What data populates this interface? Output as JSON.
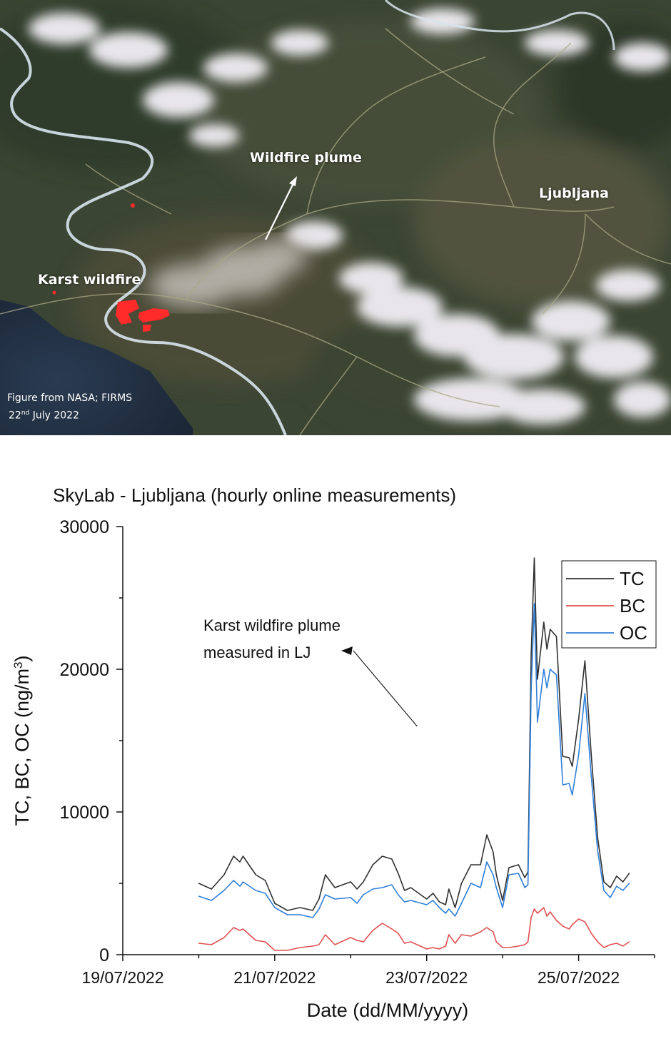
{
  "map": {
    "labels": {
      "plume": "Wildfire plume",
      "city": "Ljubljana",
      "fire": "Karst wildfire"
    },
    "credit": {
      "line1": "Figure from NASA; FIRMS",
      "day": "22",
      "day_suffix": "nd",
      "month_year": " July 2022"
    },
    "colors": {
      "fire": "#ff2a2a",
      "border": "#d8e4ee",
      "plume": "#b8b3ac"
    }
  },
  "chart_data": {
    "type": "line",
    "title": "SkyLab - Ljubljana (hourly online measurements)",
    "xlabel": "Date (dd/MM/yyyy)",
    "ylabel": "TC, BC, OC (ng/m",
    "ylabel_sup": "3",
    "ylabel_end": ")",
    "ylim": [
      0,
      30000
    ],
    "yticks": [
      0,
      10000,
      20000,
      30000
    ],
    "xlim": [
      "2022-07-19",
      "2022-07-26"
    ],
    "xticks": [
      {
        "date": "2022-07-19",
        "label": "19/07/2022"
      },
      {
        "date": "2022-07-21",
        "label": "21/07/2022"
      },
      {
        "date": "2022-07-23",
        "label": "23/07/2022"
      },
      {
        "date": "2022-07-25",
        "label": "25/07/2022"
      }
    ],
    "legend_position": "top-right",
    "annotation": {
      "lines": [
        "Karst wildfire plume",
        "measured in LJ"
      ],
      "points_to": {
        "x": "2022-07-22 21:00",
        "y": 21500
      }
    },
    "series": [
      {
        "name": "TC",
        "color": "#303030",
        "points": [
          [
            "2022-07-20 00:00",
            5000
          ],
          [
            "2022-07-20 04:00",
            4600
          ],
          [
            "2022-07-20 08:00",
            5600
          ],
          [
            "2022-07-20 11:00",
            6900
          ],
          [
            "2022-07-20 13:00",
            6500
          ],
          [
            "2022-07-20 14:00",
            6900
          ],
          [
            "2022-07-20 18:00",
            5600
          ],
          [
            "2022-07-20 21:00",
            5200
          ],
          [
            "2022-07-21 00:00",
            3600
          ],
          [
            "2022-07-21 04:00",
            3100
          ],
          [
            "2022-07-21 08:00",
            3300
          ],
          [
            "2022-07-21 12:00",
            3100
          ],
          [
            "2022-07-21 14:00",
            3900
          ],
          [
            "2022-07-21 16:00",
            5600
          ],
          [
            "2022-07-21 19:00",
            4700
          ],
          [
            "2022-07-22 00:00",
            5100
          ],
          [
            "2022-07-22 02:00",
            4600
          ],
          [
            "2022-07-22 04:00",
            5100
          ],
          [
            "2022-07-22 07:00",
            6300
          ],
          [
            "2022-07-22 10:00",
            6900
          ],
          [
            "2022-07-22 13:00",
            6700
          ],
          [
            "2022-07-22 15:00",
            5700
          ],
          [
            "2022-07-22 17:00",
            4500
          ],
          [
            "2022-07-22 19:00",
            4700
          ],
          [
            "2022-07-23 00:00",
            3900
          ],
          [
            "2022-07-23 02:00",
            4300
          ],
          [
            "2022-07-23 04:00",
            3700
          ],
          [
            "2022-07-23 06:00",
            3500
          ],
          [
            "2022-07-23 07:00",
            4600
          ],
          [
            "2022-07-23 09:00",
            3300
          ],
          [
            "2022-07-23 11:00",
            5000
          ],
          [
            "2022-07-23 14:00",
            6300
          ],
          [
            "2022-07-23 17:00",
            6300
          ],
          [
            "2022-07-23 19:00",
            8400
          ],
          [
            "2022-07-23 21:00",
            7200
          ],
          [
            "2022-07-23 22:00",
            5600
          ],
          [
            "2022-07-24 00:00",
            3800
          ],
          [
            "2022-07-24 02:00",
            6100
          ],
          [
            "2022-07-24 05:00",
            6300
          ],
          [
            "2022-07-24 07:00",
            5400
          ],
          [
            "2022-07-24 08:00",
            5800
          ],
          [
            "2022-07-24 09:00",
            21000
          ],
          [
            "2022-07-24 10:00",
            27800
          ],
          [
            "2022-07-24 11:00",
            19300
          ],
          [
            "2022-07-24 13:00",
            23300
          ],
          [
            "2022-07-24 14:00",
            21400
          ],
          [
            "2022-07-24 15:00",
            22800
          ],
          [
            "2022-07-24 17:00",
            22300
          ],
          [
            "2022-07-24 19:00",
            13900
          ],
          [
            "2022-07-24 21:00",
            13800
          ],
          [
            "2022-07-24 22:00",
            13200
          ],
          [
            "2022-07-25 00:00",
            16500
          ],
          [
            "2022-07-25 02:00",
            20600
          ],
          [
            "2022-07-25 04:00",
            14000
          ],
          [
            "2022-07-25 06:00",
            8200
          ],
          [
            "2022-07-25 08:00",
            5100
          ],
          [
            "2022-07-25 10:00",
            4700
          ],
          [
            "2022-07-25 12:00",
            5500
          ],
          [
            "2022-07-25 14:00",
            5100
          ],
          [
            "2022-07-25 16:00",
            5700
          ]
        ]
      },
      {
        "name": "BC",
        "color": "#e05050",
        "points": [
          [
            "2022-07-20 00:00",
            800
          ],
          [
            "2022-07-20 04:00",
            700
          ],
          [
            "2022-07-20 08:00",
            1200
          ],
          [
            "2022-07-20 11:00",
            1900
          ],
          [
            "2022-07-20 13:00",
            1700
          ],
          [
            "2022-07-20 14:00",
            1800
          ],
          [
            "2022-07-20 18:00",
            1000
          ],
          [
            "2022-07-20 21:00",
            900
          ],
          [
            "2022-07-21 00:00",
            300
          ],
          [
            "2022-07-21 04:00",
            300
          ],
          [
            "2022-07-21 08:00",
            500
          ],
          [
            "2022-07-21 12:00",
            600
          ],
          [
            "2022-07-21 14:00",
            700
          ],
          [
            "2022-07-21 16:00",
            1400
          ],
          [
            "2022-07-21 19:00",
            700
          ],
          [
            "2022-07-22 00:00",
            1200
          ],
          [
            "2022-07-22 02:00",
            1000
          ],
          [
            "2022-07-22 04:00",
            900
          ],
          [
            "2022-07-22 07:00",
            1700
          ],
          [
            "2022-07-22 10:00",
            2200
          ],
          [
            "2022-07-22 13:00",
            1800
          ],
          [
            "2022-07-22 15:00",
            1500
          ],
          [
            "2022-07-22 17:00",
            800
          ],
          [
            "2022-07-22 19:00",
            900
          ],
          [
            "2022-07-23 00:00",
            400
          ],
          [
            "2022-07-23 02:00",
            500
          ],
          [
            "2022-07-23 04:00",
            400
          ],
          [
            "2022-07-23 06:00",
            600
          ],
          [
            "2022-07-23 07:00",
            1400
          ],
          [
            "2022-07-23 09:00",
            800
          ],
          [
            "2022-07-23 11:00",
            1400
          ],
          [
            "2022-07-23 14:00",
            1300
          ],
          [
            "2022-07-23 17:00",
            1600
          ],
          [
            "2022-07-23 19:00",
            1900
          ],
          [
            "2022-07-23 21:00",
            1600
          ],
          [
            "2022-07-23 22:00",
            900
          ],
          [
            "2022-07-24 00:00",
            500
          ],
          [
            "2022-07-24 02:00",
            500
          ],
          [
            "2022-07-24 05:00",
            600
          ],
          [
            "2022-07-24 07:00",
            700
          ],
          [
            "2022-07-24 08:00",
            900
          ],
          [
            "2022-07-24 09:00",
            2600
          ],
          [
            "2022-07-24 10:00",
            3200
          ],
          [
            "2022-07-24 11:00",
            2900
          ],
          [
            "2022-07-24 13:00",
            3300
          ],
          [
            "2022-07-24 14:00",
            2700
          ],
          [
            "2022-07-24 15:00",
            3000
          ],
          [
            "2022-07-24 17:00",
            2400
          ],
          [
            "2022-07-24 19:00",
            2000
          ],
          [
            "2022-07-24 21:00",
            1800
          ],
          [
            "2022-07-24 22:00",
            2100
          ],
          [
            "2022-07-25 00:00",
            2500
          ],
          [
            "2022-07-25 02:00",
            2300
          ],
          [
            "2022-07-25 04:00",
            1500
          ],
          [
            "2022-07-25 06:00",
            900
          ],
          [
            "2022-07-25 08:00",
            500
          ],
          [
            "2022-07-25 10:00",
            700
          ],
          [
            "2022-07-25 12:00",
            800
          ],
          [
            "2022-07-25 14:00",
            600
          ],
          [
            "2022-07-25 16:00",
            900
          ]
        ]
      },
      {
        "name": "OC",
        "color": "#2f7fd8",
        "points": [
          [
            "2022-07-20 00:00",
            4100
          ],
          [
            "2022-07-20 04:00",
            3800
          ],
          [
            "2022-07-20 08:00",
            4500
          ],
          [
            "2022-07-20 11:00",
            5200
          ],
          [
            "2022-07-20 13:00",
            4800
          ],
          [
            "2022-07-20 14:00",
            5100
          ],
          [
            "2022-07-20 18:00",
            4500
          ],
          [
            "2022-07-20 21:00",
            4300
          ],
          [
            "2022-07-21 00:00",
            3300
          ],
          [
            "2022-07-21 04:00",
            2800
          ],
          [
            "2022-07-21 08:00",
            2800
          ],
          [
            "2022-07-21 12:00",
            2600
          ],
          [
            "2022-07-21 14:00",
            3200
          ],
          [
            "2022-07-21 16:00",
            4200
          ],
          [
            "2022-07-21 19:00",
            3900
          ],
          [
            "2022-07-22 00:00",
            4000
          ],
          [
            "2022-07-22 02:00",
            3600
          ],
          [
            "2022-07-22 04:00",
            4200
          ],
          [
            "2022-07-22 07:00",
            4600
          ],
          [
            "2022-07-22 10:00",
            4700
          ],
          [
            "2022-07-22 13:00",
            4900
          ],
          [
            "2022-07-22 15:00",
            4200
          ],
          [
            "2022-07-22 17:00",
            3700
          ],
          [
            "2022-07-22 19:00",
            3800
          ],
          [
            "2022-07-23 00:00",
            3500
          ],
          [
            "2022-07-23 02:00",
            3800
          ],
          [
            "2022-07-23 04:00",
            3300
          ],
          [
            "2022-07-23 06:00",
            2900
          ],
          [
            "2022-07-23 07:00",
            3200
          ],
          [
            "2022-07-23 09:00",
            2700
          ],
          [
            "2022-07-23 11:00",
            3600
          ],
          [
            "2022-07-23 14:00",
            5000
          ],
          [
            "2022-07-23 17:00",
            4700
          ],
          [
            "2022-07-23 19:00",
            6500
          ],
          [
            "2022-07-23 21:00",
            5600
          ],
          [
            "2022-07-23 22:00",
            4700
          ],
          [
            "2022-07-24 00:00",
            3300
          ],
          [
            "2022-07-24 02:00",
            5600
          ],
          [
            "2022-07-24 05:00",
            5700
          ],
          [
            "2022-07-24 07:00",
            4700
          ],
          [
            "2022-07-24 08:00",
            4900
          ],
          [
            "2022-07-24 09:00",
            18500
          ],
          [
            "2022-07-24 10:00",
            24600
          ],
          [
            "2022-07-24 11:00",
            16300
          ],
          [
            "2022-07-24 13:00",
            20000
          ],
          [
            "2022-07-24 14:00",
            18700
          ],
          [
            "2022-07-24 15:00",
            20000
          ],
          [
            "2022-07-24 17:00",
            19600
          ],
          [
            "2022-07-24 19:00",
            11900
          ],
          [
            "2022-07-24 21:00",
            12000
          ],
          [
            "2022-07-24 22:00",
            11200
          ],
          [
            "2022-07-25 00:00",
            14000
          ],
          [
            "2022-07-25 02:00",
            18300
          ],
          [
            "2022-07-25 04:00",
            12500
          ],
          [
            "2022-07-25 06:00",
            7300
          ],
          [
            "2022-07-25 08:00",
            4500
          ],
          [
            "2022-07-25 10:00",
            4000
          ],
          [
            "2022-07-25 12:00",
            4800
          ],
          [
            "2022-07-25 14:00",
            4500
          ],
          [
            "2022-07-25 16:00",
            5000
          ]
        ]
      }
    ]
  }
}
